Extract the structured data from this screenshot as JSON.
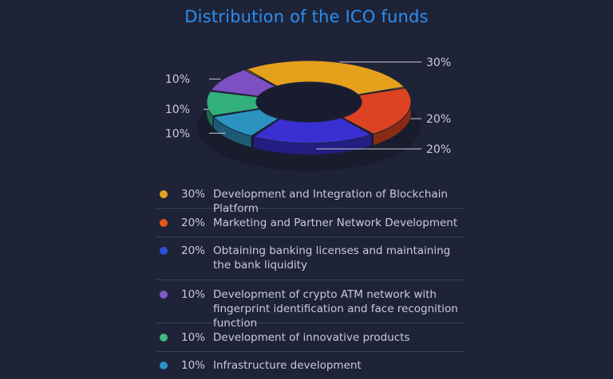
{
  "title": "Distribution of the ICO funds",
  "chart_data": {
    "type": "pie",
    "title": "Distribution of the ICO funds",
    "slices": [
      {
        "label": "Development and Integration of Blockchain Platform",
        "value": 30,
        "value_label": "30%",
        "color": "#e5a01c"
      },
      {
        "label": "Marketing and Partner Network Development",
        "value": 20,
        "value_label": "20%",
        "color": "#dd4322"
      },
      {
        "label": "Obtaining banking licenses and maintaining the bank liquidity",
        "value": 20,
        "value_label": "20%",
        "color": "#3a30d2"
      },
      {
        "label": "Development of crypto ATM network with fingerprint identification and face recognition function",
        "value": 10,
        "value_label": "10%",
        "color": "#2b93bf"
      },
      {
        "label": "Development of innovative products",
        "value": 10,
        "value_label": "10%",
        "color": "#32b07c"
      },
      {
        "label": "Infrastructure development",
        "value": 10,
        "value_label": "10%",
        "color": "#7e4fc4"
      }
    ]
  },
  "legend": [
    {
      "pct": "30%",
      "text": "Development and Integration of Blockchain Platform",
      "color": "#e5a01c"
    },
    {
      "pct": "20%",
      "text": "Marketing and Partner Network Development",
      "color": "#e8561c"
    },
    {
      "pct": "20%",
      "text": "Obtaining banking licenses and maintaining the bank liquidity",
      "color": "#2e4fd8"
    },
    {
      "pct": "10%",
      "text": "Development of crypto ATM network with fingerprint identification and face recognition function",
      "color": "#7e5bc6"
    },
    {
      "pct": "10%",
      "text": "Development of innovative products",
      "color": "#3dbb85"
    },
    {
      "pct": "10%",
      "text": "Infrastructure development",
      "color": "#2a93c4"
    }
  ]
}
